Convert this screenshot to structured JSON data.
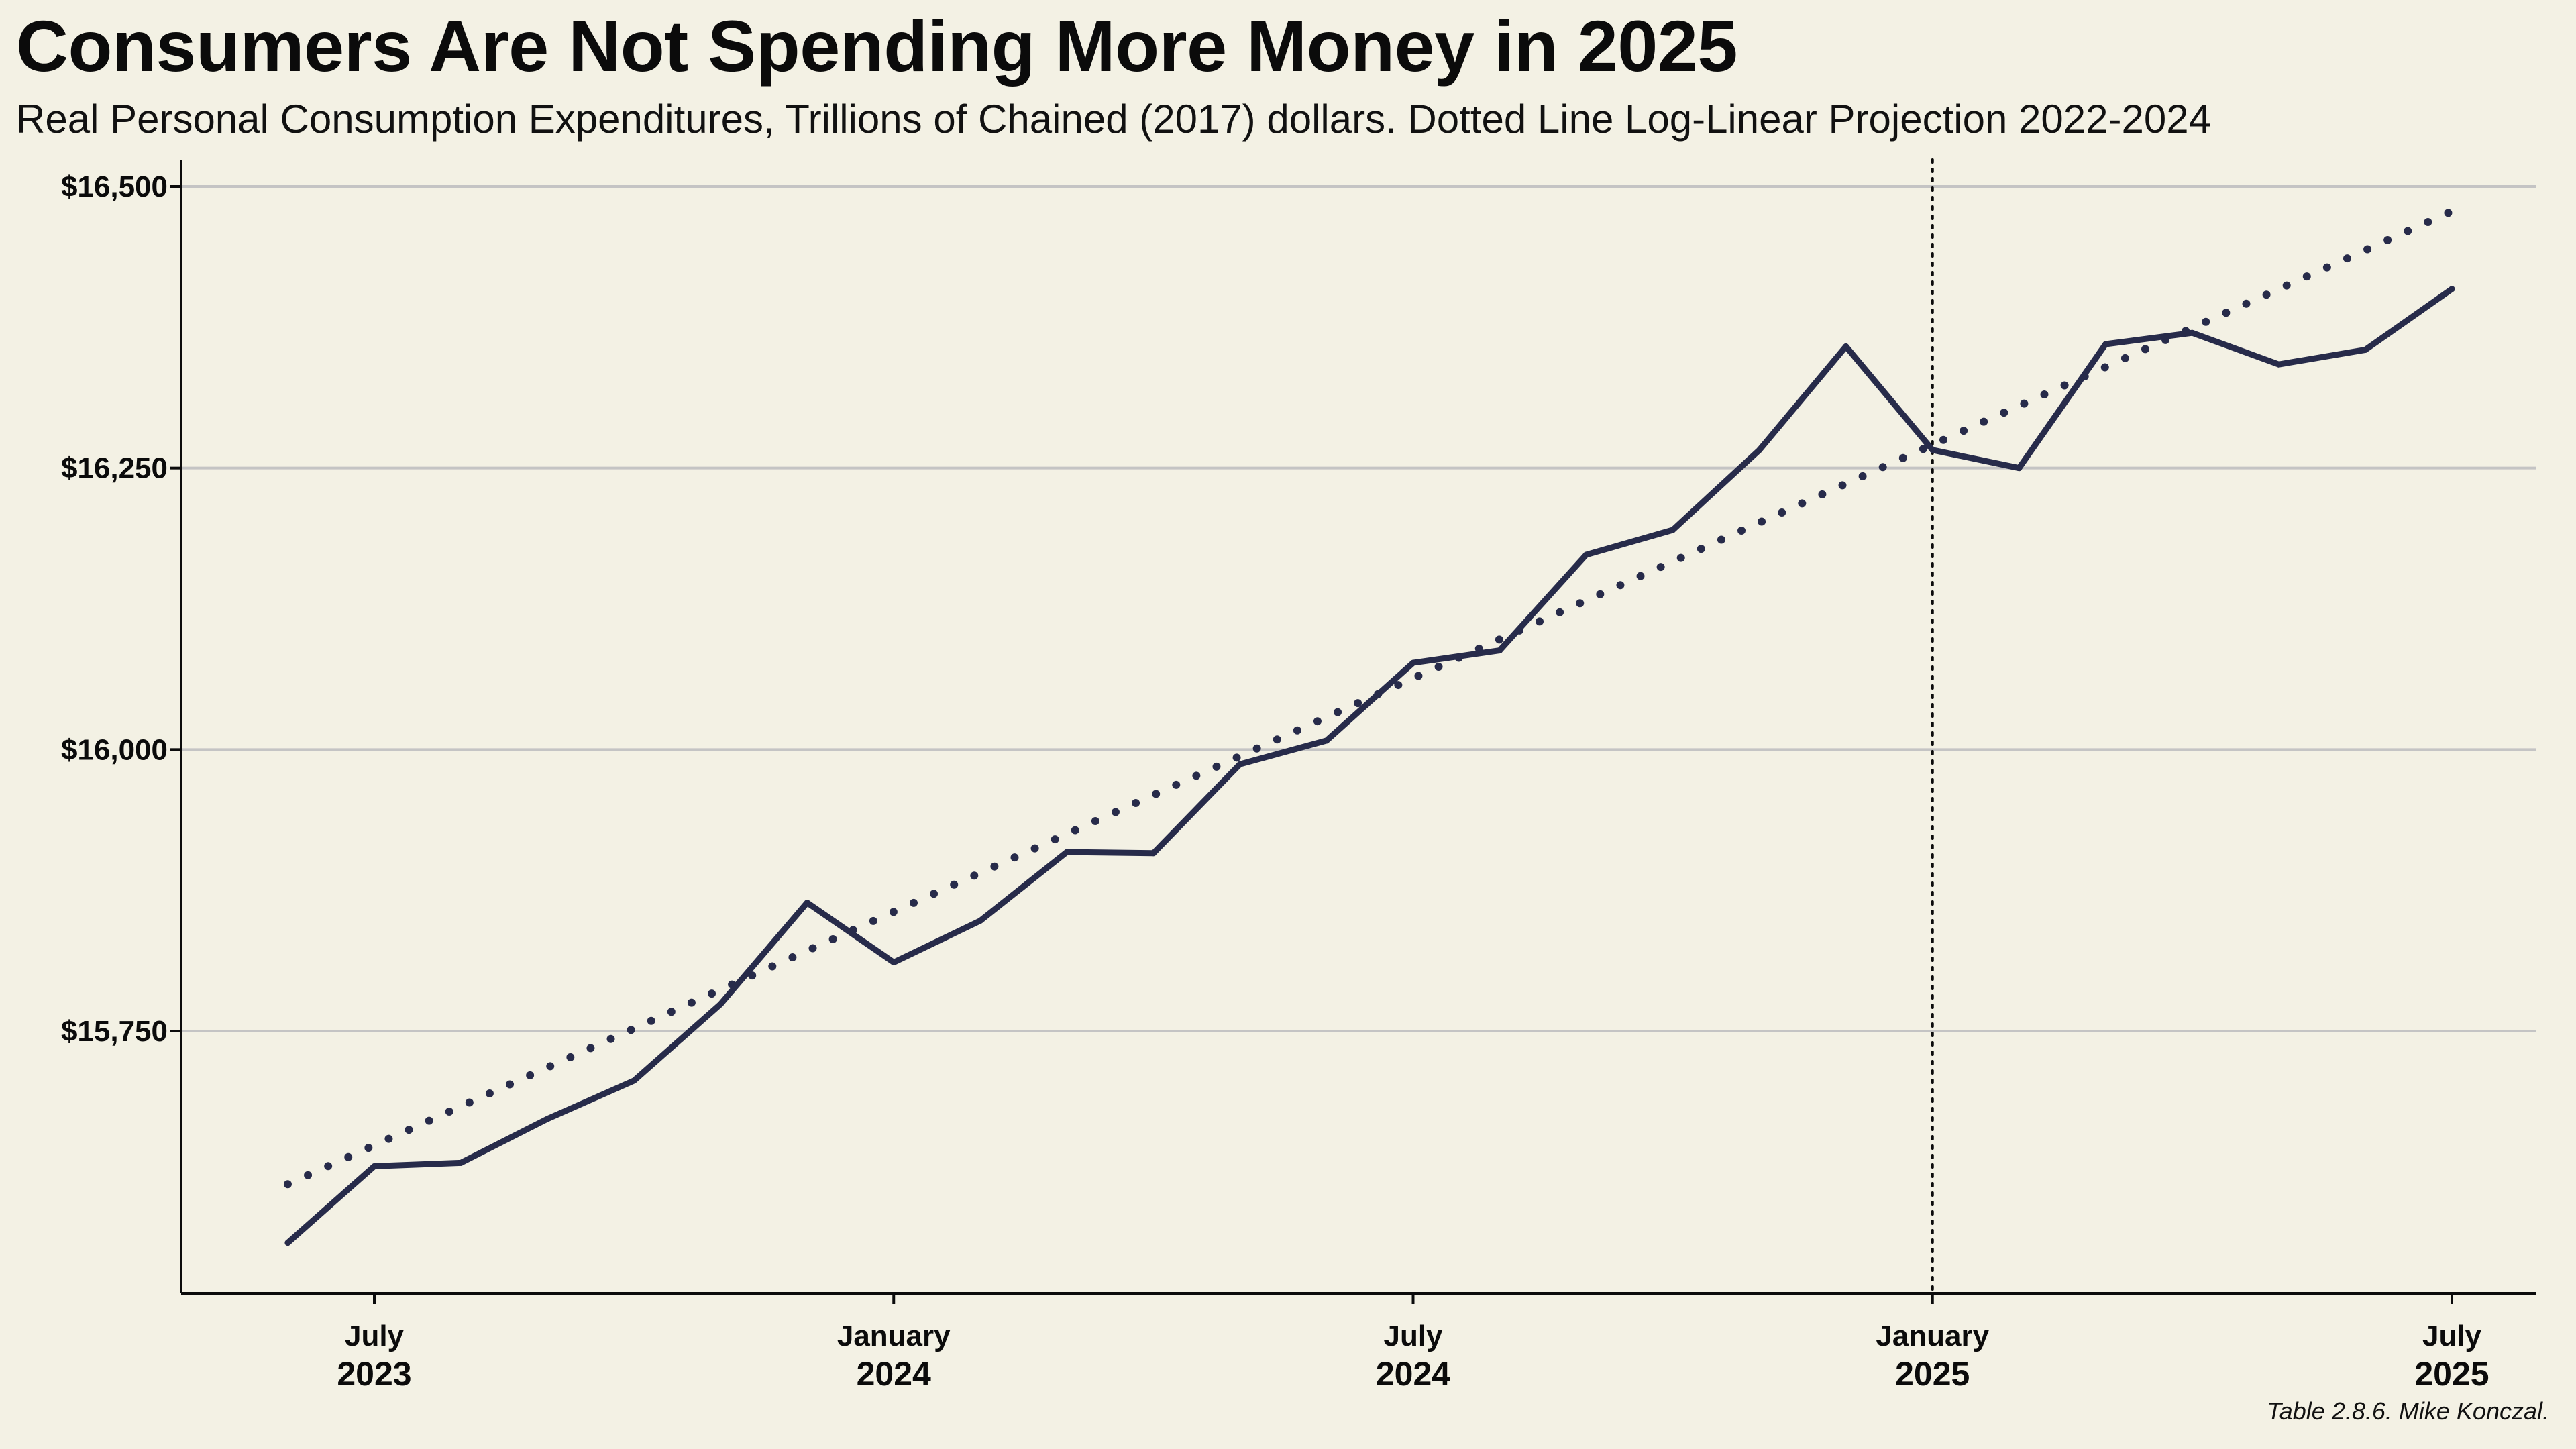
{
  "chart_data": {
    "type": "line",
    "title": "Consumers Are Not Spending More Money in 2025",
    "subtitle": "Real Personal Consumption Expenditures, Trillions of Chained (2017) dollars. Dotted Line Log-Linear Projection 2022-2024",
    "caption": "Table 2.8.6. Mike Konczal.",
    "xlabel": "",
    "ylabel": "",
    "ylim": [
      15480,
      16525
    ],
    "grid": "horizontal",
    "y_ticks": [
      15750,
      16000,
      16250,
      16500
    ],
    "y_tick_labels": [
      "$15,750",
      "$16,000",
      "$16,250",
      "$16,500"
    ],
    "x_ticks": [
      {
        "index": 1,
        "line1": "July",
        "line2": "2023"
      },
      {
        "index": 7,
        "line1": "January",
        "line2": "2024"
      },
      {
        "index": 13,
        "line1": "July",
        "line2": "2024"
      },
      {
        "index": 19,
        "line1": "January",
        "line2": "2025"
      },
      {
        "index": 25,
        "line1": "July",
        "line2": "2025"
      }
    ],
    "x": [
      "Jun 2023",
      "Jul 2023",
      "Aug 2023",
      "Sep 2023",
      "Oct 2023",
      "Nov 2023",
      "Dec 2023",
      "Jan 2024",
      "Feb 2024",
      "Mar 2024",
      "Apr 2024",
      "May 2024",
      "Jun 2024",
      "Jul 2024",
      "Aug 2024",
      "Sep 2024",
      "Oct 2024",
      "Nov 2024",
      "Dec 2024",
      "Jan 2025",
      "Feb 2025",
      "Mar 2025",
      "Apr 2025",
      "May 2025",
      "Jun 2025",
      "Jul 2025"
    ],
    "vline_index": 19,
    "series": [
      {
        "name": "Real PCE",
        "style": "solid",
        "values": [
          15562,
          15630,
          15633,
          15672,
          15706,
          15774,
          15864,
          15811,
          15848,
          15909,
          15908,
          15987,
          16008,
          16077,
          16088,
          16173,
          16195,
          16266,
          16358,
          16266,
          16250,
          16360,
          16370,
          16342,
          16355,
          16409
        ]
      },
      {
        "name": "Log-Linear Projection 2022-2024",
        "style": "dotted",
        "start_index": 0,
        "end_index": 25,
        "start_value": 15614,
        "end_value": 16478
      }
    ],
    "colors": {
      "line": "#272b4a",
      "grid": "#c4c4c4",
      "axis": "#0b0b0b",
      "background": "#f3f1e4"
    }
  }
}
